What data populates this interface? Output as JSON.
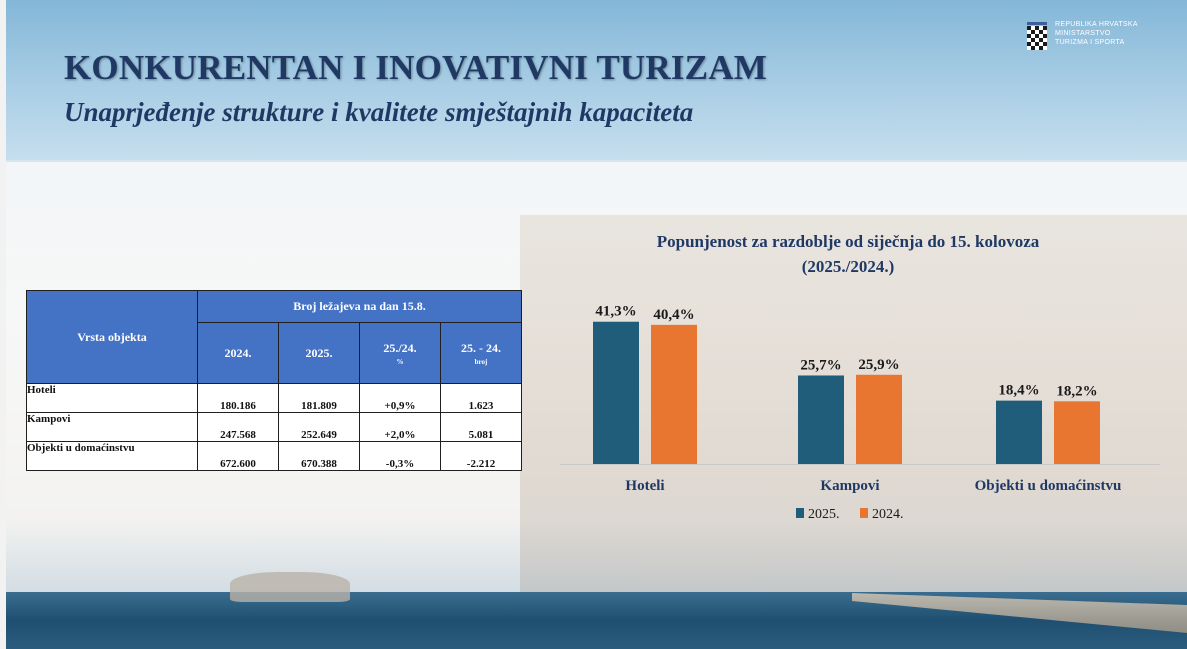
{
  "header": {
    "title": "KONKURENTAN I INOVATIVNI TURIZAM",
    "subtitle": "Unaprjeđenje strukture i kvalitete smještajnih kapaciteta",
    "logo_lines": [
      "REPUBLIKA HRVATSKA",
      "MINISTARSTVO",
      "TURIZMA I SPORTA"
    ]
  },
  "table": {
    "row_header": "Vrsta objekta",
    "group_header": "Broj ležajeva na dan 15.8.",
    "columns": [
      {
        "label": "2024.",
        "note": ""
      },
      {
        "label": "2025.",
        "note": ""
      },
      {
        "label": "25./24.",
        "note": "%"
      },
      {
        "label": "25. - 24.",
        "note": "broj"
      }
    ],
    "rows": [
      {
        "label": "Hoteli",
        "values": [
          "180.186",
          "181.809",
          "+0,9%",
          "1.623"
        ]
      },
      {
        "label": "Kampovi",
        "values": [
          "247.568",
          "252.649",
          "+2,0%",
          "5.081"
        ]
      },
      {
        "label": "Objekti u domaćinstvu",
        "values": [
          "672.600",
          "670.388",
          "-0,3%",
          "-2.212"
        ]
      }
    ]
  },
  "chart_data": {
    "type": "bar",
    "title": "Popunjenost  za razdoblje od siječnja do 15. kolovoza (2025./2024.)",
    "title_lines": [
      "Popunjenost  za razdoblje od siječnja do 15. kolovoza",
      "(2025./2024.)"
    ],
    "categories": [
      "Hoteli",
      "Kampovi",
      "Objekti u domaćinstvu"
    ],
    "series": [
      {
        "name": "2025.",
        "color": "#1f5d7a",
        "values": [
          41.3,
          25.7,
          18.4
        ],
        "labels": [
          "41,3%",
          "25,7%",
          "18,4%"
        ]
      },
      {
        "name": "2024.",
        "color": "#e87530",
        "values": [
          40.4,
          25.9,
          18.2
        ],
        "labels": [
          "40,4%",
          "25,9%",
          "18,2%"
        ]
      }
    ],
    "ylim": [
      0,
      45
    ],
    "legend_position": "bottom",
    "grid": false
  }
}
